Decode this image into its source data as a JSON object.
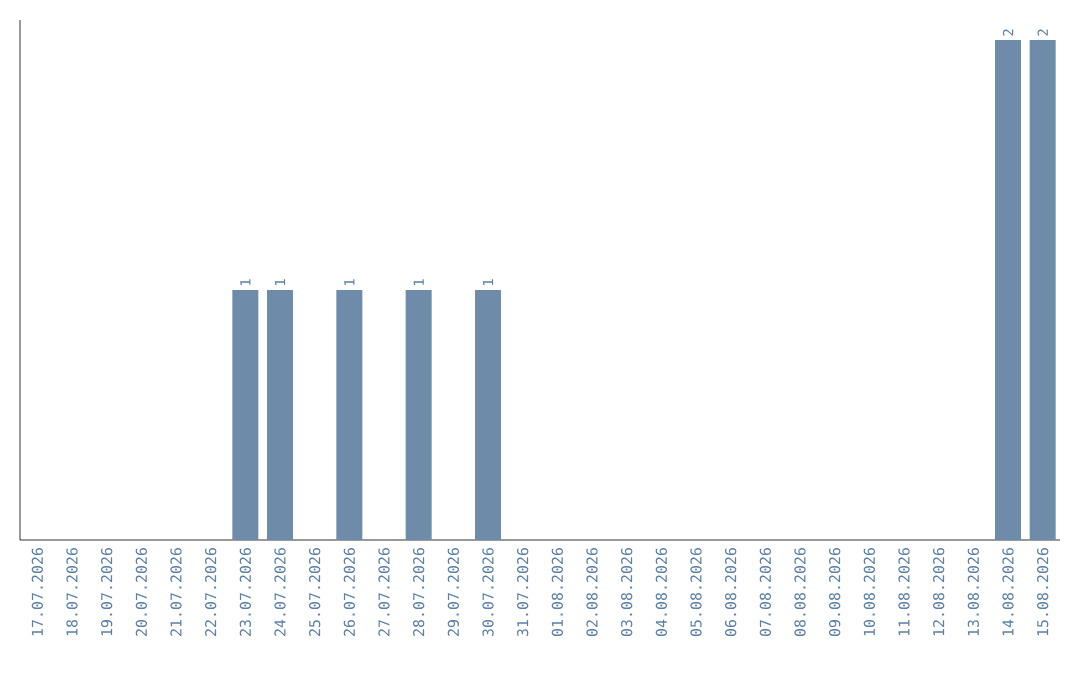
{
  "chart_data": {
    "type": "bar",
    "categories": [
      "17.07.2026",
      "18.07.2026",
      "19.07.2026",
      "20.07.2026",
      "21.07.2026",
      "22.07.2026",
      "23.07.2026",
      "24.07.2026",
      "25.07.2026",
      "26.07.2026",
      "27.07.2026",
      "28.07.2026",
      "29.07.2026",
      "30.07.2026",
      "31.07.2026",
      "01.08.2026",
      "02.08.2026",
      "03.08.2026",
      "04.08.2026",
      "05.08.2026",
      "06.08.2026",
      "07.08.2026",
      "08.08.2026",
      "09.08.2026",
      "10.08.2026",
      "11.08.2026",
      "12.08.2026",
      "13.08.2026",
      "14.08.2026",
      "15.08.2026"
    ],
    "values": [
      0,
      0,
      0,
      0,
      0,
      0,
      1,
      1,
      0,
      1,
      0,
      1,
      0,
      1,
      0,
      0,
      0,
      0,
      0,
      0,
      0,
      0,
      0,
      0,
      0,
      0,
      0,
      0,
      2,
      2
    ],
    "value_labels": [
      null,
      null,
      null,
      null,
      null,
      null,
      "1",
      "1",
      null,
      "1",
      null,
      "1",
      null,
      "1",
      null,
      null,
      null,
      null,
      null,
      null,
      null,
      null,
      null,
      null,
      null,
      null,
      null,
      null,
      "2",
      "2"
    ],
    "color": "#6e8caa",
    "tick_labels": "x"
  }
}
